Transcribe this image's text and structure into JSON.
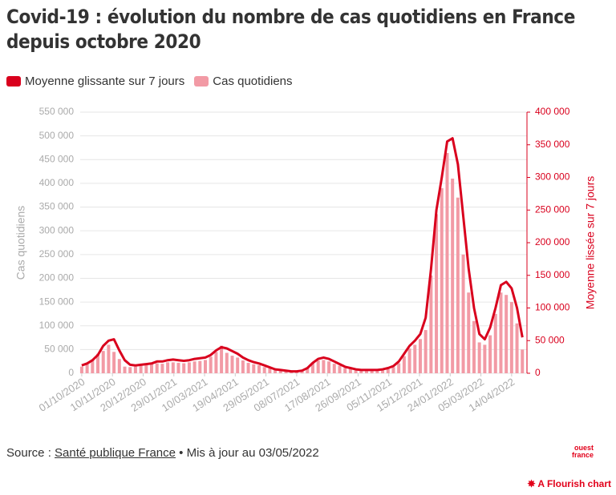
{
  "chart_data": {
    "type": "combo",
    "title": "Covid-19 : évolution du nombre de cas quotidiens en France depuis octobre 2020",
    "y_label": "Cas quotidiens",
    "y2_label": "Moyenne lissée sur 7 jours",
    "x": [
      "01/10/2020",
      "08/10/2020",
      "15/10/2020",
      "22/10/2020",
      "29/10/2020",
      "05/11/2020",
      "12/11/2020",
      "19/11/2020",
      "26/11/2020",
      "03/12/2020",
      "10/12/2020",
      "17/12/2020",
      "24/12/2020",
      "31/12/2020",
      "07/01/2021",
      "14/01/2021",
      "21/01/2021",
      "28/01/2021",
      "04/02/2021",
      "11/02/2021",
      "18/02/2021",
      "25/02/2021",
      "04/03/2021",
      "11/03/2021",
      "18/03/2021",
      "25/03/2021",
      "01/04/2021",
      "08/04/2021",
      "15/04/2021",
      "22/04/2021",
      "29/04/2021",
      "06/05/2021",
      "13/05/2021",
      "20/05/2021",
      "27/05/2021",
      "03/06/2021",
      "10/06/2021",
      "17/06/2021",
      "24/06/2021",
      "01/07/2021",
      "08/07/2021",
      "15/07/2021",
      "22/07/2021",
      "29/07/2021",
      "05/08/2021",
      "12/08/2021",
      "19/08/2021",
      "26/08/2021",
      "02/09/2021",
      "09/09/2021",
      "16/09/2021",
      "23/09/2021",
      "30/09/2021",
      "07/10/2021",
      "14/10/2021",
      "21/10/2021",
      "28/10/2021",
      "04/11/2021",
      "11/11/2021",
      "18/11/2021",
      "25/11/2021",
      "02/12/2021",
      "09/12/2021",
      "16/12/2021",
      "23/12/2021",
      "30/12/2021",
      "06/01/2022",
      "13/01/2022",
      "20/01/2022",
      "27/01/2022",
      "03/02/2022",
      "10/02/2022",
      "17/02/2022",
      "24/02/2022",
      "03/03/2022",
      "10/03/2022",
      "17/03/2022",
      "24/03/2022",
      "31/03/2022",
      "07/04/2022",
      "14/04/2022",
      "21/04/2022",
      "28/04/2022"
    ],
    "xlim": [
      "29/09/2020",
      "04/05/2022"
    ],
    "xticks": [
      "01/10/2020",
      "10/11/2020",
      "20/12/2020",
      "29/01/2021",
      "10/03/2021",
      "19/04/2021",
      "29/05/2021",
      "08/07/2021",
      "17/08/2021",
      "26/09/2021",
      "05/11/2021",
      "15/12/2021",
      "24/01/2022",
      "05/03/2022",
      "14/04/2022"
    ],
    "ylim": [
      0,
      550000
    ],
    "yticks": [
      {
        "value": 0,
        "label": "0"
      },
      {
        "value": 50000,
        "label": "50 000"
      },
      {
        "value": 100000,
        "label": "100 000"
      },
      {
        "value": 150000,
        "label": "150 000"
      },
      {
        "value": 200000,
        "label": "200 000"
      },
      {
        "value": 250000,
        "label": "250 000"
      },
      {
        "value": 300000,
        "label": "300 000"
      },
      {
        "value": 350000,
        "label": "350 000"
      },
      {
        "value": 400000,
        "label": "400 000"
      },
      {
        "value": 450000,
        "label": "450 000"
      },
      {
        "value": 500000,
        "label": "500 000"
      },
      {
        "value": 550000,
        "label": "550 000"
      }
    ],
    "y2lim": [
      0,
      400000
    ],
    "y2ticks": [
      {
        "value": 0,
        "label": "0"
      },
      {
        "value": 50000,
        "label": "50 000"
      },
      {
        "value": 100000,
        "label": "100 000"
      },
      {
        "value": 150000,
        "label": "150 000"
      },
      {
        "value": 200000,
        "label": "200 000"
      },
      {
        "value": 250000,
        "label": "250 000"
      },
      {
        "value": 300000,
        "label": "300 000"
      },
      {
        "value": 350000,
        "label": "350 000"
      },
      {
        "value": 400000,
        "label": "400 000"
      }
    ],
    "grid": true,
    "series": [
      {
        "name": "Cas quotidiens",
        "type": "bar",
        "color": "#f29aa5",
        "values": [
          14000,
          19000,
          27000,
          41000,
          47000,
          60000,
          45000,
          30000,
          14000,
          13000,
          14000,
          17000,
          17000,
          20000,
          21000,
          20000,
          23000,
          23000,
          22000,
          21000,
          23000,
          25000,
          26000,
          28000,
          35000,
          45000,
          58000,
          43000,
          37000,
          33000,
          27000,
          22000,
          19000,
          17000,
          13000,
          10000,
          7000,
          5500,
          4500,
          3500,
          3500,
          5000,
          10000,
          21000,
          27000,
          28000,
          25000,
          20000,
          16000,
          11000,
          9000,
          6500,
          5500,
          5500,
          5500,
          6000,
          7000,
          9000,
          13000,
          21000,
          36000,
          52000,
          60000,
          72000,
          91000,
          206000,
          335000,
          390000,
          464000,
          410000,
          370000,
          250000,
          170000,
          110000,
          65000,
          60000,
          80000,
          125000,
          170000,
          165000,
          150000,
          105000,
          50000
        ]
      },
      {
        "name": "Moyenne glissante sur 7 jours",
        "type": "line",
        "axis": "y2",
        "color": "#d9001d",
        "values": [
          12000,
          15000,
          20000,
          28000,
          42000,
          50000,
          52000,
          35000,
          20000,
          13000,
          12000,
          13000,
          14000,
          15000,
          18000,
          18000,
          20000,
          21000,
          20000,
          19000,
          20000,
          22000,
          23000,
          24000,
          28000,
          35000,
          40000,
          38000,
          34000,
          30000,
          24000,
          20000,
          17000,
          15000,
          12000,
          9000,
          6000,
          5000,
          4000,
          3000,
          3000,
          4000,
          8000,
          16000,
          22000,
          24000,
          22000,
          18000,
          14000,
          10000,
          8000,
          6000,
          5000,
          5000,
          5000,
          5000,
          6000,
          8000,
          11000,
          18000,
          30000,
          42000,
          50000,
          60000,
          85000,
          160000,
          250000,
          300000,
          355000,
          360000,
          320000,
          240000,
          160000,
          100000,
          60000,
          52000,
          70000,
          100000,
          135000,
          140000,
          130000,
          100000,
          55000
        ]
      }
    ]
  },
  "footer": {
    "source_prefix": "Source :",
    "source_link": "Santé publique France",
    "updated": "• Mis à jour au 03/05/2022"
  },
  "branding": {
    "logo_top": "ouest",
    "logo_bottom": "france",
    "flourish": "A Flourish chart"
  }
}
